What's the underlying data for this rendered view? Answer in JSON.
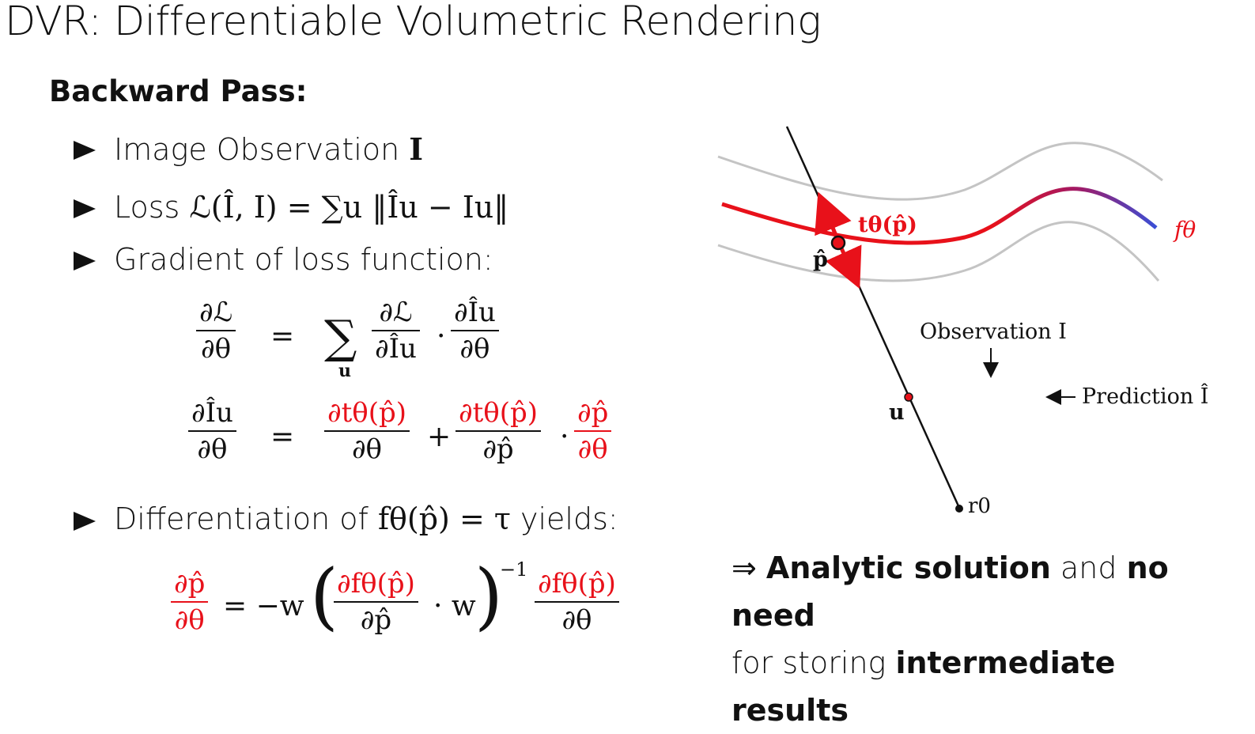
{
  "slide": {
    "title": "DVR: Differentiable Volumetric Rendering",
    "section": "Backward Pass:"
  },
  "bullets": [
    {
      "text": "Image Observation ",
      "math": "I"
    },
    {
      "text": "Loss ",
      "math": "ℒ(Î, I) = ∑u ‖Îu − Iu‖"
    },
    {
      "text": "Gradient of loss function:",
      "math": ""
    },
    {
      "text": "Differentiation of ",
      "math": "fθ(p̂) = τ",
      "suffix": " yields:"
    }
  ],
  "equations": {
    "eq1": {
      "lhs_num": "∂ℒ",
      "lhs_den": "∂θ",
      "equals": "=",
      "sum": "∑",
      "sum_sub": "u",
      "f1_num": "∂ℒ",
      "f1_den": "∂Îu",
      "dot": "·",
      "f2_num": "∂Îu",
      "f2_den": "∂θ"
    },
    "eq2": {
      "lhs_num": "∂Îu",
      "lhs_den": "∂θ",
      "equals": "=",
      "f1_num": "∂tθ(p̂)",
      "f1_den": "∂θ",
      "plus": "+",
      "f2_num": "∂tθ(p̂)",
      "f2_den": "∂p̂",
      "dot": "·",
      "f3_num": "∂p̂",
      "f3_den": "∂θ"
    },
    "eq3": {
      "lhs_num": "∂p̂",
      "lhs_den": "∂θ",
      "equals_neg_w": "= −w",
      "inner_num": "∂fθ(p̂)",
      "inner_den": "∂p̂",
      "dot_w": "· w",
      "exponent": "−1",
      "f_num": "∂fθ(p̂)",
      "f_den": "∂θ"
    }
  },
  "diagram": {
    "surface_label": "fθ",
    "normal_label": "tθ(p̂)",
    "point_label": "p̂",
    "pixel_label": "u",
    "origin_label": "r0",
    "observation_label": "Observation I",
    "prediction_label": "Prediction Î",
    "colors": {
      "red": "#e8111a",
      "blue": "#3a4fd6",
      "gray": "#c4c4c4"
    }
  },
  "conclusion": {
    "arrow": "⇒ ",
    "bold1": "Analytic solution",
    "mid": " and ",
    "bold2": "no need",
    "line2": "for storing ",
    "bold3": "intermediate results"
  }
}
